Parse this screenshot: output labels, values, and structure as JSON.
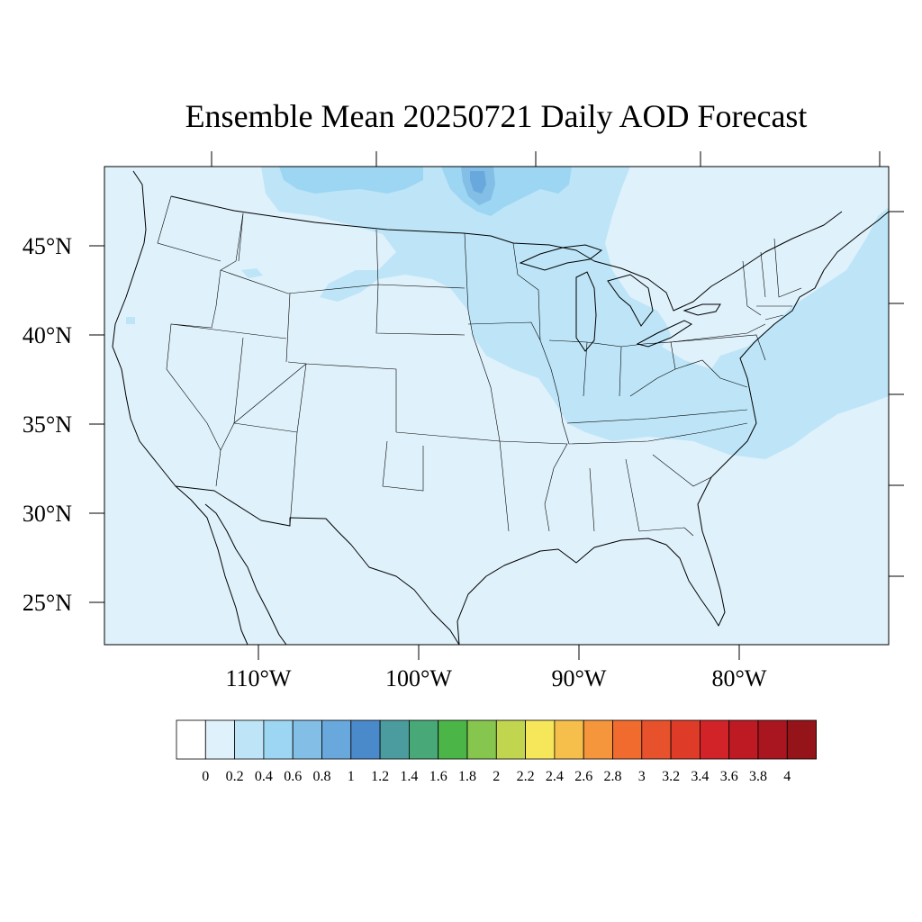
{
  "title": "Ensemble Mean 20250721 Daily AOD Forecast",
  "lat_labels": [
    "45°N",
    "40°N",
    "35°N",
    "30°N",
    "25°N"
  ],
  "lon_labels": [
    "110°W",
    "100°W",
    "90°W",
    "80°W"
  ],
  "colorbar": {
    "labels": [
      "0",
      "0.2",
      "0.4",
      "0.6",
      "0.8",
      "1",
      "1.2",
      "1.4",
      "1.6",
      "1.8",
      "2",
      "2.2",
      "2.4",
      "2.6",
      "2.8",
      "3",
      "3.2",
      "3.4",
      "3.6",
      "3.8",
      "4"
    ],
    "colors": [
      "#ffffff",
      "#dff1fb",
      "#bde5f7",
      "#9dd6f3",
      "#82bee6",
      "#68a8dc",
      "#4a8acb",
      "#4a9c9f",
      "#48a877",
      "#4bb548",
      "#86c54e",
      "#c2d54f",
      "#f6e65a",
      "#f6be4a",
      "#f5963c",
      "#f26b2e",
      "#e7522c",
      "#df3b29",
      "#d22328",
      "#bd1a24",
      "#a91620",
      "#941419"
    ]
  },
  "colors": {
    "background_fill": "#dff1fb",
    "level_0_4": "#bde5f7",
    "level_0_6": "#9dd6f3",
    "level_0_8": "#82bee6",
    "level_1_0": "#68a8dc"
  }
}
